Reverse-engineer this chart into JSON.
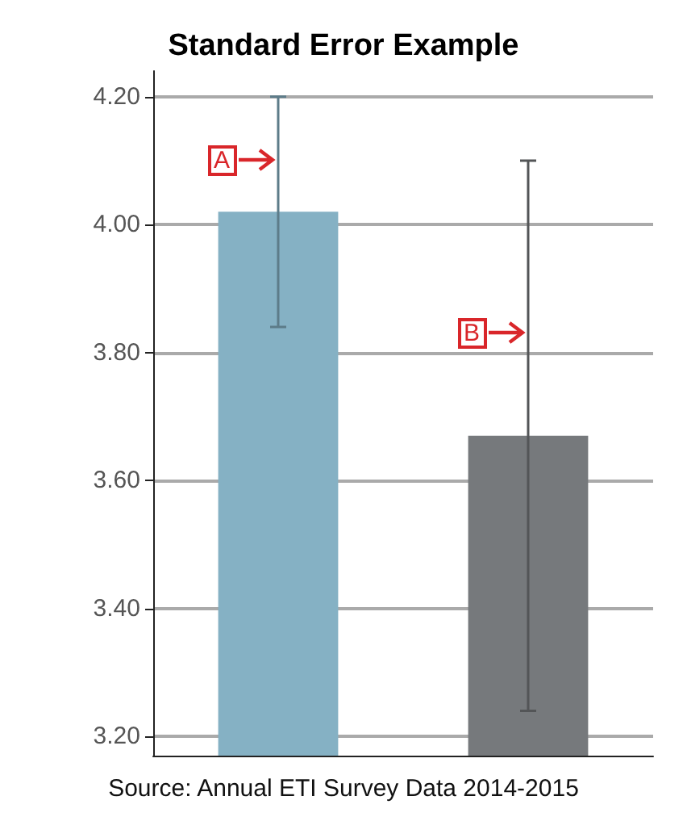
{
  "chart_data": {
    "type": "bar",
    "title": "Standard Error Example",
    "categories": [
      null,
      null
    ],
    "values": [
      4.02,
      3.67
    ],
    "colors": [
      "#85b1c4",
      "#76797c"
    ],
    "errors": [
      0.18,
      0.43
    ],
    "ylim": [
      3.17,
      4.24
    ],
    "yticks": [
      {
        "value": 3.2,
        "label": "3.20"
      },
      {
        "value": 3.4,
        "label": "3.40"
      },
      {
        "value": 3.6,
        "label": "3.60"
      },
      {
        "value": 3.8,
        "label": "3.80"
      },
      {
        "value": 4.0,
        "label": "4.00"
      },
      {
        "value": 4.2,
        "label": "4.20"
      }
    ],
    "grid": "y",
    "annotations": [
      {
        "text": "A",
        "y": 4.1
      },
      {
        "text": "B",
        "y": 3.83
      },
      "Source: Annual ETI Survey Data 2014-2015"
    ]
  }
}
